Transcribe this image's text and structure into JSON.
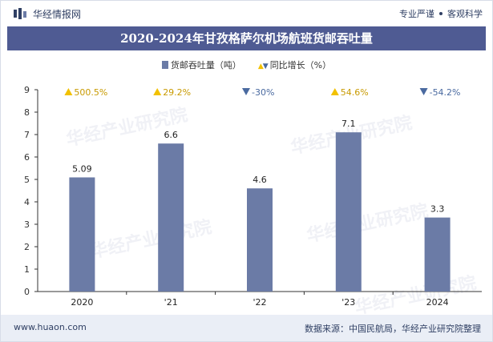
{
  "header": {
    "brand": "华经情报网",
    "slogan_left": "专业严谨",
    "slogan_right": "客观科学"
  },
  "title": "2020-2024年甘孜格萨尔机场航班货邮吞吐量",
  "legend": {
    "bar_label": "货邮吞吐量（吨）",
    "growth_label": "同比增长（%）"
  },
  "watermark": "华经产业研究院",
  "colors": {
    "bar": "#6b7ba6",
    "title_bg": "#4f5b93",
    "up": "#f2c100",
    "down": "#4a6aa0",
    "growth_text": "#c89a00"
  },
  "chart_data": {
    "type": "bar",
    "categories": [
      "2020",
      "'21",
      "'22",
      "'23",
      "2024"
    ],
    "series": [
      {
        "name": "货邮吞吐量（吨）",
        "values": [
          5.09,
          6.6,
          4.6,
          7.1,
          3.3
        ]
      },
      {
        "name": "同比增长（%）",
        "values": [
          500.5,
          29.2,
          -30,
          54.6,
          -54.2
        ]
      }
    ],
    "value_labels": [
      "5.09",
      "6.6",
      "4.6",
      "7.1",
      "3.3"
    ],
    "growth_labels": [
      "500.5%",
      "29.2%",
      "-30%",
      "54.6%",
      "-54.2%"
    ],
    "ylim": [
      0,
      9
    ],
    "yticks": [
      0,
      1,
      2,
      3,
      4,
      5,
      6,
      7,
      8,
      9
    ],
    "grid": false,
    "legend_position": "top"
  },
  "footer": {
    "site": "www.huaon.com",
    "source": "数据来源：中国民航局，华经产业研究院整理"
  }
}
